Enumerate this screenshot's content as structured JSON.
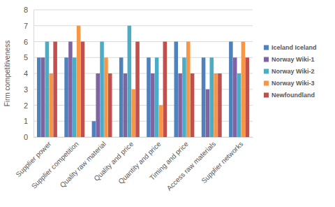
{
  "chart_data": {
    "type": "bar",
    "y_label": "Firm competitiveness",
    "categories": [
      "Supplier power",
      "Supplier competition",
      "Quality raw material",
      "Quality and price",
      "Quantity and price",
      "Timing and price",
      "Access raw materials",
      "Supplier networks"
    ],
    "series": [
      {
        "name": "Iceland Iceland",
        "color": "#4f81bd",
        "values": [
          5,
          5,
          1,
          5,
          5,
          6,
          5,
          6
        ]
      },
      {
        "name": "Norway Wiki-1",
        "color": "#8064a2",
        "values": [
          5,
          6,
          4,
          4,
          4,
          4,
          3,
          5
        ]
      },
      {
        "name": "Norway Wiki-2",
        "color": "#4bacc6",
        "values": [
          6,
          5,
          6,
          7,
          5,
          5,
          5,
          4
        ]
      },
      {
        "name": "Norway Wiki-3",
        "color": "#f79646",
        "values": [
          4,
          7,
          5,
          3,
          2,
          6,
          4,
          6
        ]
      },
      {
        "name": "Newfoundland",
        "color": "#c0504d",
        "values": [
          6,
          6,
          4,
          6,
          6,
          4,
          4,
          5
        ]
      }
    ],
    "ylim": [
      0,
      8
    ],
    "yticks": [
      0,
      1,
      2,
      3,
      4,
      5,
      6,
      7,
      8
    ],
    "grid": true,
    "legend": "right"
  }
}
